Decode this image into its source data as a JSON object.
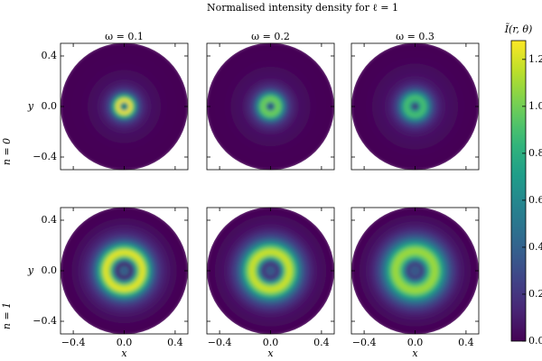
{
  "chart_data": {
    "type": "radial-heatmap",
    "title": "Normalised intensity density for ℓ = 1",
    "colorbar_label": "Ĩ(r, θ)",
    "colormap": "viridis",
    "clim": [
      0,
      1.28
    ],
    "cticks": [
      {
        "value": 0,
        "label": "0.0"
      },
      0.2,
      0.4,
      0.6,
      0.8,
      {
        "value": 1,
        "label": "1.0"
      },
      1.2
    ],
    "xlabel": "x",
    "ylabel": "y",
    "xlim": [
      -0.5,
      0.5
    ],
    "ylim": [
      -0.5,
      0.5
    ],
    "xticks": [
      {
        "value": -0.4,
        "label": "−0.4"
      },
      {
        "value": 0,
        "label": "0.0"
      },
      0.4
    ],
    "yticks": [
      {
        "value": -0.4,
        "label": "−0.4"
      },
      {
        "value": 0,
        "label": "0.0"
      },
      0.4
    ],
    "row_labels": [
      "n = 0",
      "n = 1"
    ],
    "r": [
      0,
      0.025,
      0.05,
      0.075,
      0.1,
      0.125,
      0.15,
      0.175,
      0.2,
      0.225,
      0.25,
      0.275,
      0.3,
      0.325,
      0.35,
      0.375,
      0.4,
      0.425,
      0.45,
      0.475,
      0.5
    ],
    "panels": [
      {
        "title": "ω = 0.1",
        "intensity": [
          0,
          0.7,
          1.28,
          0.9,
          0.45,
          0.25,
          0.15,
          0.1,
          0.07,
          0.05,
          0.04,
          0.03,
          0.02,
          0.02,
          0.01,
          0.01,
          0.01,
          0,
          0,
          0,
          0
        ]
      },
      {
        "title": "ω = 0.2",
        "intensity": [
          0,
          0.5,
          1.0,
          0.95,
          0.6,
          0.35,
          0.2,
          0.13,
          0.09,
          0.06,
          0.05,
          0.04,
          0.03,
          0.02,
          0.02,
          0.01,
          0.01,
          0.01,
          0,
          0,
          0
        ]
      },
      {
        "title": "ω = 0.3",
        "intensity": [
          0,
          0.4,
          0.85,
          0.9,
          0.65,
          0.4,
          0.25,
          0.16,
          0.11,
          0.08,
          0.06,
          0.05,
          0.04,
          0.03,
          0.02,
          0.02,
          0.01,
          0.01,
          0,
          0,
          0
        ]
      },
      {
        "title": "",
        "intensity": [
          0.2,
          0.45,
          0.1,
          0.35,
          0.8,
          1.15,
          1.25,
          1.0,
          0.7,
          0.45,
          0.3,
          0.2,
          0.14,
          0.1,
          0.07,
          0.05,
          0.03,
          0.02,
          0.01,
          0,
          0
        ]
      },
      {
        "title": "",
        "intensity": [
          0.2,
          0.4,
          0.15,
          0.35,
          0.75,
          1.1,
          1.2,
          1.05,
          0.8,
          0.55,
          0.38,
          0.26,
          0.18,
          0.12,
          0.08,
          0.06,
          0.04,
          0.03,
          0.02,
          0.01,
          0
        ]
      },
      {
        "title": "",
        "intensity": [
          0.2,
          0.4,
          0.2,
          0.4,
          0.75,
          1.0,
          1.1,
          1.05,
          0.85,
          0.62,
          0.45,
          0.32,
          0.22,
          0.15,
          0.1,
          0.07,
          0.05,
          0.03,
          0.02,
          0.01,
          0
        ]
      }
    ]
  }
}
